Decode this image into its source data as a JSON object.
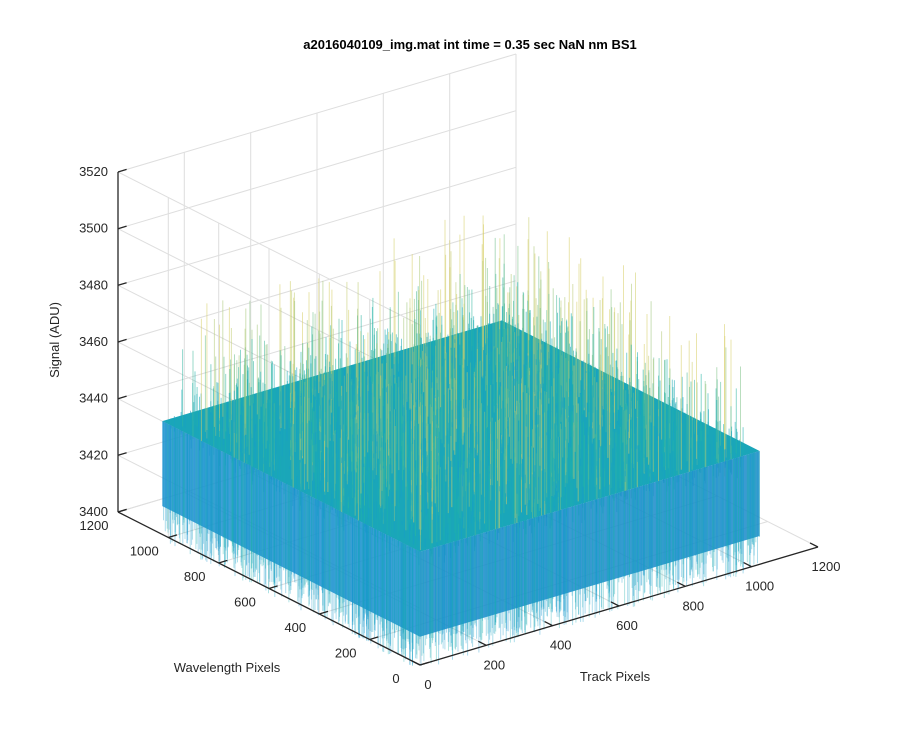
{
  "chart_data": {
    "type": "surface",
    "title": "a2016040109_img.mat int time = 0.35 sec  NaN nm BS1",
    "xlabel": "Track Pixels",
    "ylabel": "Wavelength Pixels",
    "zlabel": "Signal (ADU)",
    "xlim": [
      0,
      1200
    ],
    "ylim": [
      0,
      1200
    ],
    "zlim": [
      3400,
      3520
    ],
    "x_ticks": [
      "0",
      "200",
      "400",
      "600",
      "800",
      "1000",
      "1200"
    ],
    "y_ticks": [
      "0",
      "200",
      "400",
      "600",
      "800",
      "1000",
      "1200"
    ],
    "z_ticks": [
      "3400",
      "3420",
      "3440",
      "3460",
      "3480",
      "3500",
      "3520"
    ],
    "data_extent": {
      "x": [
        0,
        1024
      ],
      "y": [
        0,
        1024
      ]
    },
    "signal_mean": 3440,
    "signal_range": [
      3410,
      3485
    ],
    "grid": true,
    "colormap": "parula",
    "colors": {
      "low": "#1a86d6",
      "mid": "#1fb3a8",
      "high": "#d8d06a"
    }
  }
}
